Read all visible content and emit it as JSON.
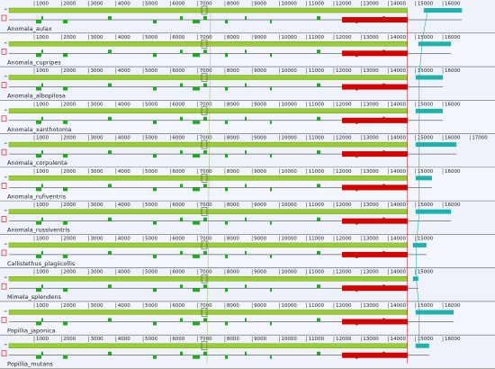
{
  "tracks": [
    {
      "name": "Anomala_aulax",
      "ticks": [
        1000,
        2000,
        3000,
        4000,
        5000,
        6000,
        7000,
        8000,
        9000,
        10000,
        11000,
        12000,
        13000,
        14000,
        15000,
        16000
      ],
      "blocks": [
        {
          "start": 12300,
          "end": 14700,
          "color": "#d40000"
        },
        {
          "start": 15300,
          "end": 16700,
          "color": "#20b2aa"
        }
      ]
    },
    {
      "name": "Anomala_cupripes",
      "ticks": [
        1000,
        2000,
        3000,
        4000,
        5000,
        6000,
        7000,
        8000,
        9000,
        10000,
        11000,
        12000,
        13000,
        14000,
        15000,
        16000
      ],
      "blocks": [
        {
          "start": 12300,
          "end": 14700,
          "color": "#d40000"
        },
        {
          "start": 15100,
          "end": 16300,
          "color": "#20b2aa"
        }
      ]
    },
    {
      "name": "Anomala_albopilosa",
      "ticks": [
        1000,
        2000,
        3000,
        4000,
        5000,
        6000,
        7000,
        8000,
        9000,
        10000,
        11000,
        12000,
        13000,
        14000,
        15000,
        16000
      ],
      "blocks": [
        {
          "start": 12300,
          "end": 14700,
          "color": "#d40000"
        },
        {
          "start": 15000,
          "end": 16000,
          "color": "#20b2aa"
        }
      ]
    },
    {
      "name": "Anomala_xanthotoma",
      "ticks": [
        1000,
        2000,
        3000,
        4000,
        5000,
        6000,
        7000,
        8000,
        9000,
        10000,
        11000,
        12000,
        13000,
        14000,
        15000,
        16000
      ],
      "blocks": [
        {
          "start": 12300,
          "end": 14700,
          "color": "#d40000"
        },
        {
          "start": 15000,
          "end": 16000,
          "color": "#20b2aa"
        }
      ]
    },
    {
      "name": "Anomala_corpulenta",
      "ticks": [
        1000,
        2000,
        3000,
        4000,
        5000,
        6000,
        7000,
        8000,
        9000,
        10000,
        11000,
        12000,
        13000,
        14000,
        15000,
        16000,
        17000
      ],
      "blocks": [
        {
          "start": 12300,
          "end": 14700,
          "color": "#d40000"
        },
        {
          "start": 15000,
          "end": 16500,
          "color": "#20b2aa"
        }
      ]
    },
    {
      "name": "Anomala_rufiventris",
      "ticks": [
        1000,
        2000,
        3000,
        4000,
        5000,
        6000,
        7000,
        8000,
        9000,
        10000,
        11000,
        12000,
        13000,
        14000,
        15000,
        16000
      ],
      "blocks": [
        {
          "start": 12300,
          "end": 14700,
          "color": "#d40000"
        },
        {
          "start": 15000,
          "end": 15600,
          "color": "#20b2aa"
        }
      ]
    },
    {
      "name": "Anomala_russiventris",
      "ticks": [
        1000,
        2000,
        3000,
        4000,
        5000,
        6000,
        7000,
        8000,
        9000,
        10000,
        11000,
        12000,
        13000,
        14000,
        15000,
        16000
      ],
      "blocks": [
        {
          "start": 12300,
          "end": 14700,
          "color": "#d40000"
        },
        {
          "start": 15000,
          "end": 16300,
          "color": "#20b2aa"
        }
      ]
    },
    {
      "name": "Callistethus_plagiicollis",
      "ticks": [
        1000,
        2000,
        3000,
        4000,
        5000,
        6000,
        7000,
        8000,
        9000,
        10000,
        11000,
        12000,
        13000,
        14000,
        15000
      ],
      "blocks": [
        {
          "start": 12300,
          "end": 14700,
          "color": "#d40000"
        },
        {
          "start": 14900,
          "end": 15400,
          "color": "#20b2aa"
        }
      ]
    },
    {
      "name": "Mimela_splendens",
      "ticks": [
        1000,
        2000,
        3000,
        4000,
        5000,
        6000,
        7000,
        8000,
        9000,
        10000,
        11000,
        12000,
        13000,
        14000,
        15000
      ],
      "blocks": [
        {
          "start": 12300,
          "end": 14700,
          "color": "#d40000"
        },
        {
          "start": 14900,
          "end": 15100,
          "color": "#20b2aa"
        }
      ]
    },
    {
      "name": "Popillia_japonica",
      "ticks": [
        1000,
        2000,
        3000,
        4000,
        5000,
        6000,
        7000,
        8000,
        9000,
        10000,
        11000,
        12000,
        13000,
        14000,
        15000,
        16000
      ],
      "blocks": [
        {
          "start": 12300,
          "end": 14700,
          "color": "#d40000"
        },
        {
          "start": 15000,
          "end": 16400,
          "color": "#20b2aa"
        }
      ]
    },
    {
      "name": "Popillia_mutans",
      "ticks": [
        1000,
        2000,
        3000,
        4000,
        5000,
        6000,
        7000,
        8000,
        9000,
        10000,
        11000,
        12000,
        13000,
        14000,
        15000,
        16000
      ],
      "blocks": [
        {
          "start": 12300,
          "end": 14700,
          "color": "#d40000"
        },
        {
          "start": 15000,
          "end": 15500,
          "color": "#20b2aa"
        }
      ]
    }
  ]
}
